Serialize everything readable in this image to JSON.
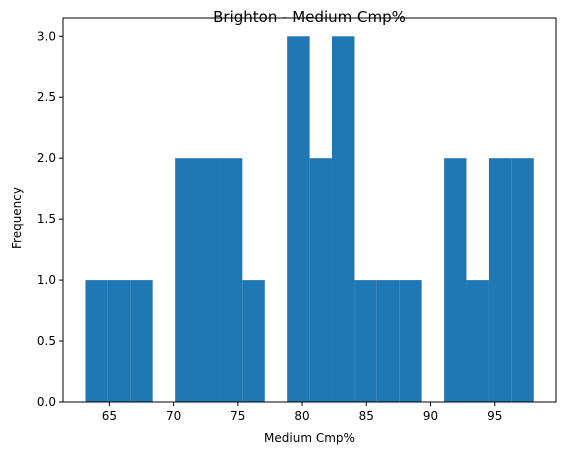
{
  "chart_data": {
    "type": "bar",
    "title": "Brighton - Medium Cmp%",
    "xlabel": "Medium Cmp%",
    "ylabel": "Frequency",
    "xlim": [
      61.39,
      99.77
    ],
    "ylim": [
      0,
      3.15
    ],
    "xticks": [
      65,
      70,
      75,
      80,
      85,
      90,
      95
    ],
    "yticks": [
      0.0,
      0.5,
      1.0,
      1.5,
      2.0,
      2.5,
      3.0
    ],
    "xtick_labels": [
      "65",
      "70",
      "75",
      "80",
      "85",
      "90",
      "95"
    ],
    "ytick_labels": [
      "0.0",
      "0.5",
      "1.0",
      "1.5",
      "2.0",
      "2.5",
      "3.0"
    ],
    "bins": [
      {
        "x0": 63.14,
        "x1": 64.88,
        "count": 1
      },
      {
        "x0": 64.88,
        "x1": 66.63,
        "count": 1
      },
      {
        "x0": 66.63,
        "x1": 68.37,
        "count": 1
      },
      {
        "x0": 68.37,
        "x1": 70.12,
        "count": 0
      },
      {
        "x0": 70.12,
        "x1": 71.86,
        "count": 2
      },
      {
        "x0": 71.86,
        "x1": 73.61,
        "count": 2
      },
      {
        "x0": 73.61,
        "x1": 75.35,
        "count": 2
      },
      {
        "x0": 75.35,
        "x1": 77.1,
        "count": 1
      },
      {
        "x0": 77.1,
        "x1": 78.84,
        "count": 0
      },
      {
        "x0": 78.84,
        "x1": 80.59,
        "count": 3
      },
      {
        "x0": 80.59,
        "x1": 82.33,
        "count": 2
      },
      {
        "x0": 82.33,
        "x1": 84.08,
        "count": 3
      },
      {
        "x0": 84.08,
        "x1": 85.82,
        "count": 1
      },
      {
        "x0": 85.82,
        "x1": 87.57,
        "count": 1
      },
      {
        "x0": 87.57,
        "x1": 89.31,
        "count": 1
      },
      {
        "x0": 89.31,
        "x1": 91.06,
        "count": 0
      },
      {
        "x0": 91.06,
        "x1": 92.8,
        "count": 2
      },
      {
        "x0": 92.8,
        "x1": 94.55,
        "count": 1
      },
      {
        "x0": 94.55,
        "x1": 96.29,
        "count": 2
      },
      {
        "x0": 96.29,
        "x1": 98.04,
        "count": 2
      }
    ],
    "bar_color": "#1f77b4",
    "grid": false,
    "legend": "none"
  }
}
